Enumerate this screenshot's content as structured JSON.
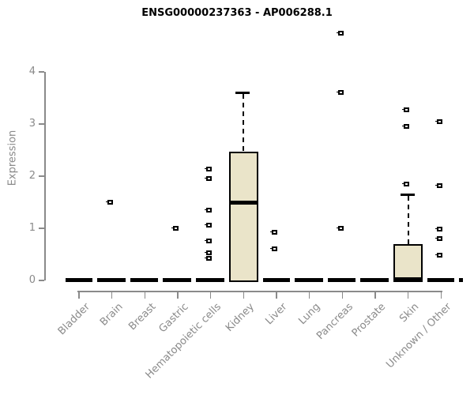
{
  "title": "ENSG00000237363 - AP006288.1",
  "colors": {
    "box_fill": "#EAE4C9",
    "box_border": "#000000",
    "axis": "#8A8A8A",
    "label_text": "#8A8A8A",
    "title_text": "#000000",
    "background": "#FFFFFF"
  },
  "chart_data": {
    "type": "boxplot",
    "title": "ENSG00000237363 - AP006288.1",
    "ylabel": "Expression",
    "xlabel": "",
    "ylim": [
      0,
      4
    ],
    "y_ticks": [
      0,
      1,
      2,
      3,
      4
    ],
    "grid": false,
    "legend": false,
    "categories": [
      "Bladder",
      "Brain",
      "Breast",
      "Gastric",
      "Hematopoietic cells",
      "Kidney",
      "Liver",
      "Lung",
      "Pancreas",
      "Prostate",
      "Skin",
      "Unknown / Other"
    ],
    "series": [
      {
        "name": "Bladder",
        "q1": 0,
        "median": 0,
        "q3": 0,
        "whisker_low": 0,
        "whisker_high": 0,
        "outliers": [],
        "zero_nub": true
      },
      {
        "name": "Brain",
        "q1": 0,
        "median": 0,
        "q3": 0,
        "whisker_low": 0,
        "whisker_high": 0,
        "outliers": [
          1.5
        ],
        "zero_nub": true
      },
      {
        "name": "Breast",
        "q1": 0,
        "median": 0,
        "q3": 0,
        "whisker_low": 0,
        "whisker_high": 0,
        "outliers": [],
        "zero_nub": true
      },
      {
        "name": "Gastric",
        "q1": 0,
        "median": 0,
        "q3": 0,
        "whisker_low": 0,
        "whisker_high": 0,
        "outliers": [
          1.0
        ],
        "zero_nub": true
      },
      {
        "name": "Hematopoietic cells",
        "q1": 0,
        "median": 0,
        "q3": 0,
        "whisker_low": 0,
        "whisker_high": 0,
        "outliers": [
          2.13,
          1.96,
          1.35,
          1.06,
          0.76,
          0.53,
          0.42
        ],
        "zero_nub": true
      },
      {
        "name": "Kidney",
        "q1": 0,
        "median": 1.5,
        "q3": 2.45,
        "whisker_low": 0,
        "whisker_high": 3.6,
        "outliers": [],
        "zero_nub": false
      },
      {
        "name": "Liver",
        "q1": 0,
        "median": 0,
        "q3": 0,
        "whisker_low": 0,
        "whisker_high": 0,
        "outliers": [
          0.93,
          0.61
        ],
        "zero_nub": true
      },
      {
        "name": "Lung",
        "q1": 0,
        "median": 0,
        "q3": 0,
        "whisker_low": 0,
        "whisker_high": 0,
        "outliers": [],
        "zero_nub": true
      },
      {
        "name": "Pancreas",
        "q1": 0,
        "median": 0,
        "q3": 0,
        "whisker_low": 0,
        "whisker_high": 0,
        "outliers": [
          4.75,
          3.6,
          1.0
        ],
        "zero_nub": true
      },
      {
        "name": "Prostate",
        "q1": 0,
        "median": 0,
        "q3": 0,
        "whisker_low": 0,
        "whisker_high": 0,
        "outliers": [],
        "zero_nub": true
      },
      {
        "name": "Skin",
        "q1": 0,
        "median": 0.03,
        "q3": 0.68,
        "whisker_low": 0,
        "whisker_high": 1.65,
        "outliers": [
          3.27,
          2.95,
          1.85
        ],
        "zero_nub": false
      },
      {
        "name": "Unknown / Other",
        "q1": 0,
        "median": 0,
        "q3": 0,
        "whisker_low": 0,
        "whisker_high": 0,
        "outliers": [
          3.05,
          1.82,
          0.98,
          0.81,
          0.48
        ],
        "zero_nub": true
      }
    ]
  }
}
